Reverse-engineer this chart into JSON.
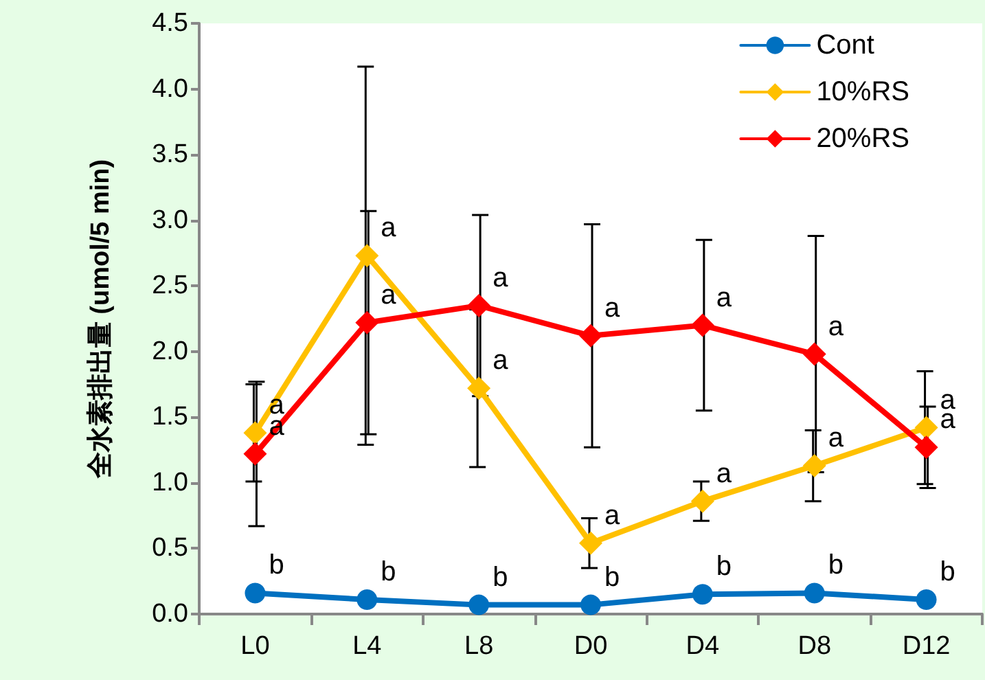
{
  "chart_data": {
    "type": "line",
    "ylabel": "全水素排出量 (umol/5 min)",
    "categories": [
      "L0",
      "L4",
      "L8",
      "D0",
      "D4",
      "D8",
      "D12"
    ],
    "series": [
      {
        "name": "Cont",
        "color": "#0070c0",
        "marker": "circle",
        "values": [
          0.16,
          0.11,
          0.07,
          0.07,
          0.15,
          0.16,
          0.11
        ]
      },
      {
        "name": "10%RS",
        "color": "#ffc000",
        "marker": "diamond",
        "values": [
          1.38,
          2.73,
          1.72,
          0.54,
          0.86,
          1.13,
          1.42
        ],
        "errors": [
          0.37,
          1.44,
          0.6,
          0.19,
          0.15,
          0.27,
          0.43
        ]
      },
      {
        "name": "20%RS",
        "color": "#ff0000",
        "marker": "diamond",
        "values": [
          1.22,
          2.22,
          2.35,
          2.12,
          2.2,
          1.98,
          1.27
        ],
        "errors": [
          0.55,
          0.85,
          0.69,
          0.85,
          0.65,
          0.9,
          0.31
        ]
      }
    ],
    "ylim": [
      0,
      4.5
    ],
    "yticks": [
      {
        "value": 0,
        "label": "0.0"
      },
      {
        "value": 0.5,
        "label": "0.5"
      },
      {
        "value": 1,
        "label": "1.0"
      },
      {
        "value": 1.5,
        "label": "1.5"
      },
      {
        "value": 2,
        "label": "2.0"
      },
      {
        "value": 2.5,
        "label": "2.5"
      },
      {
        "value": 3,
        "label": "3.0"
      },
      {
        "value": 3.5,
        "label": "3.5"
      },
      {
        "value": 4,
        "label": "4.0"
      },
      {
        "value": 4.5,
        "label": "4.5"
      }
    ],
    "grid": false,
    "legend": "top right",
    "line_style": "solid",
    "annotations": [
      {
        "text": "b",
        "x": "L0",
        "y": 0.16
      },
      {
        "text": "b",
        "x": "L4",
        "y": 0.11
      },
      {
        "text": "b",
        "x": "L8",
        "y": 0.07
      },
      {
        "text": "b",
        "x": "D0",
        "y": 0.07
      },
      {
        "text": "b",
        "x": "D4",
        "y": 0.15
      },
      {
        "text": "b",
        "x": "D8",
        "y": 0.16
      },
      {
        "text": "b",
        "x": "D12",
        "y": 0.11
      },
      {
        "text": "a",
        "x": "L0",
        "y": 1.38
      },
      {
        "text": "a",
        "x": "L4",
        "y": 2.73
      },
      {
        "text": "a",
        "x": "L8",
        "y": 1.72
      },
      {
        "text": "a",
        "x": "D0",
        "y": 0.54
      },
      {
        "text": "a",
        "x": "D4",
        "y": 0.86
      },
      {
        "text": "a",
        "x": "D8",
        "y": 1.13
      },
      {
        "text": "a",
        "x": "D12",
        "y": 1.42
      },
      {
        "text": "a",
        "x": "L0",
        "y": 1.22
      },
      {
        "text": "a",
        "x": "L4",
        "y": 2.22
      },
      {
        "text": "a",
        "x": "L8",
        "y": 2.35
      },
      {
        "text": "a",
        "x": "D0",
        "y": 2.12
      },
      {
        "text": "a",
        "x": "D4",
        "y": 2.2
      },
      {
        "text": "a",
        "x": "D8",
        "y": 1.98
      },
      {
        "text": "a",
        "x": "D12",
        "y": 1.27
      }
    ]
  }
}
